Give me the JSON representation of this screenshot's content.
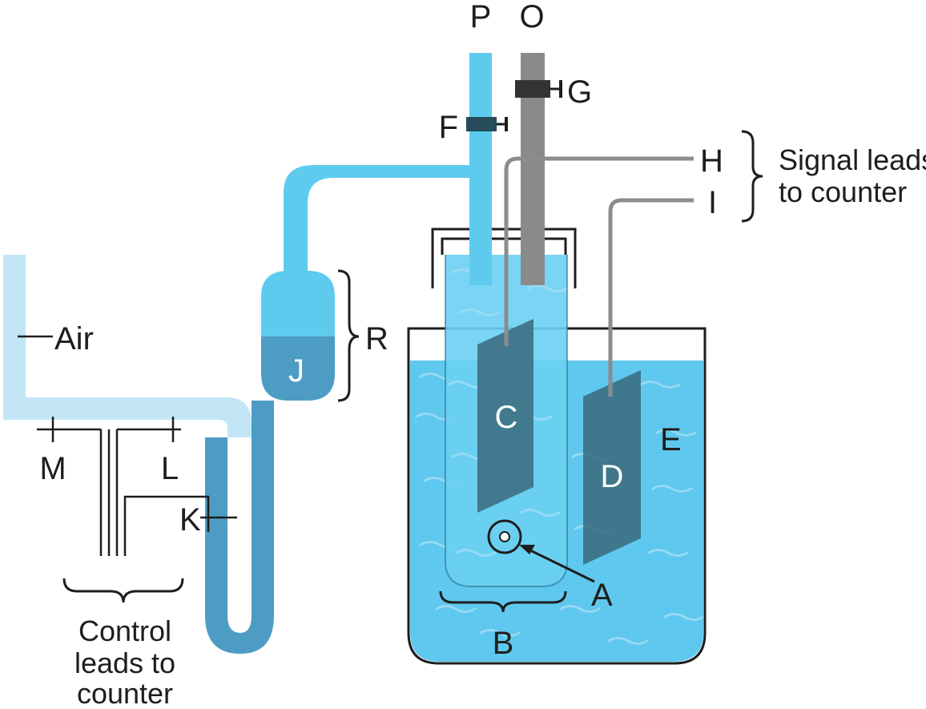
{
  "colors": {
    "tube_light": "#c2e6f6",
    "tube_mid": "#5ecbee",
    "mercury": "#4d9cc3",
    "liquid": "#5fc8ee",
    "inner_liquid": "#6ad0f2",
    "electrode": "#3b6c80",
    "gray_tube": "#8a8a8a",
    "wire": "#8c8c8c",
    "outline": "#1e1e1e"
  },
  "labels": {
    "P": "P",
    "O": "O",
    "G": "G",
    "F": "F",
    "H": "H",
    "I": "I",
    "R": "R",
    "J": "J",
    "C": "C",
    "D": "D",
    "E": "E",
    "A": "A",
    "B": "B",
    "K": "K",
    "L": "L",
    "M": "M",
    "air": "Air"
  },
  "annotations": {
    "signal_line1": "Signal leads",
    "signal_line2": "to counter",
    "control_line1": "Control",
    "control_line2": "leads to",
    "control_line3": "counter"
  }
}
